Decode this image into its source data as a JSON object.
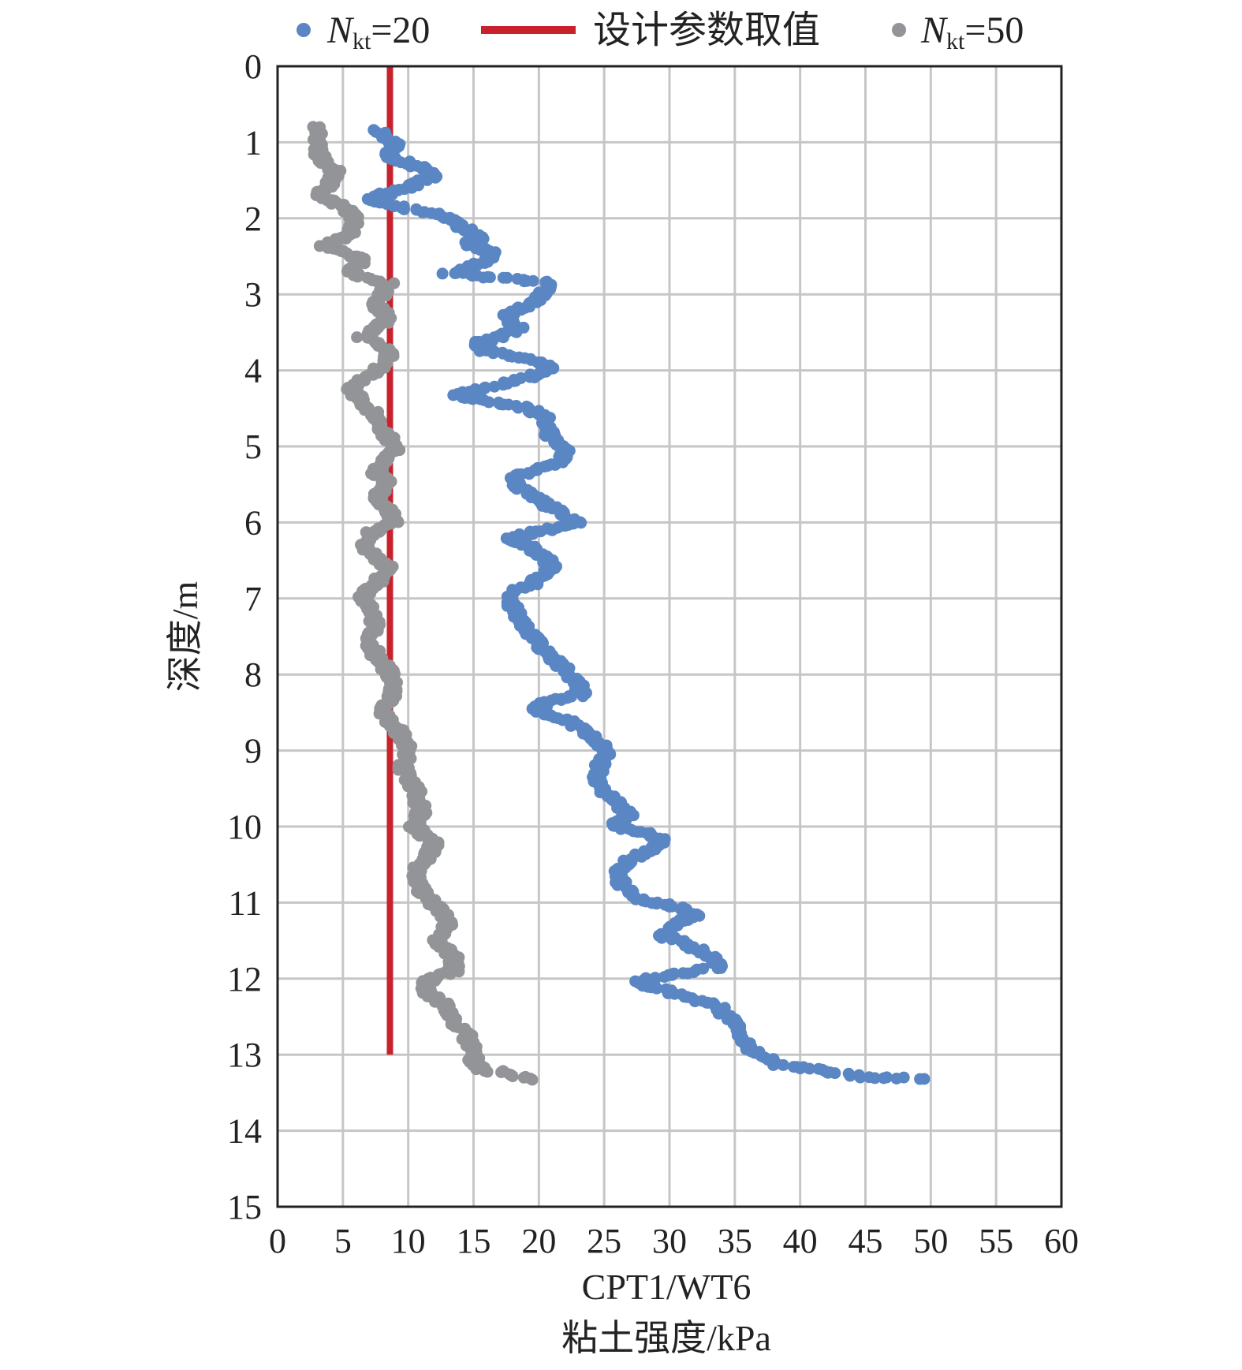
{
  "chart_data": {
    "type": "scatter",
    "title": "",
    "xlabel": "CPT1/WT6",
    "xlabel_line2": "粘土强度/kPa",
    "ylabel": "深度/m",
    "xlim": [
      0,
      60
    ],
    "ylim": [
      15,
      0
    ],
    "x_ticks": [
      0,
      5,
      10,
      15,
      20,
      25,
      30,
      35,
      40,
      45,
      50,
      55,
      60
    ],
    "y_ticks": [
      0,
      1,
      2,
      3,
      4,
      5,
      6,
      7,
      8,
      9,
      10,
      11,
      12,
      13,
      14,
      15
    ],
    "grid": true,
    "legend_position": "top",
    "legend": [
      {
        "key": "nkt20",
        "symbol": "N",
        "subscript": "kt",
        "suffix": "=20",
        "mark": "dot",
        "color": "#5b86c4"
      },
      {
        "key": "design",
        "label": "设计参数取值",
        "mark": "line",
        "color": "#c8232c"
      },
      {
        "key": "nkt50",
        "symbol": "N",
        "subscript": "kt",
        "suffix": "=50",
        "mark": "dot",
        "color": "#929498"
      }
    ],
    "design_line": {
      "name": "设计参数取值",
      "color": "#c8232c",
      "x": 8.6,
      "y_from": 0,
      "y_to": 13.0
    },
    "series": [
      {
        "name": "Nkt=20",
        "color": "#5b86c4",
        "profile": [
          [
            7.8,
            0.85
          ],
          [
            8.3,
            0.95
          ],
          [
            9.0,
            1.05
          ],
          [
            8.2,
            1.15
          ],
          [
            9.5,
            1.25
          ],
          [
            11.0,
            1.35
          ],
          [
            12.0,
            1.45
          ],
          [
            10.5,
            1.55
          ],
          [
            9.0,
            1.65
          ],
          [
            7.0,
            1.75
          ],
          [
            9.5,
            1.85
          ],
          [
            12.5,
            1.95
          ],
          [
            13.5,
            2.05
          ],
          [
            14.5,
            2.15
          ],
          [
            15.5,
            2.25
          ],
          [
            14.5,
            2.35
          ],
          [
            16.5,
            2.45
          ],
          [
            16.0,
            2.55
          ],
          [
            14.5,
            2.65
          ],
          [
            13.0,
            2.72
          ],
          [
            18.0,
            2.8
          ],
          [
            21.0,
            2.85
          ],
          [
            20.5,
            2.95
          ],
          [
            20.0,
            3.05
          ],
          [
            19.0,
            3.15
          ],
          [
            17.5,
            3.3
          ],
          [
            18.5,
            3.45
          ],
          [
            17.0,
            3.55
          ],
          [
            15.0,
            3.65
          ],
          [
            16.0,
            3.75
          ],
          [
            19.0,
            3.85
          ],
          [
            21.0,
            3.95
          ],
          [
            20.0,
            4.05
          ],
          [
            18.0,
            4.15
          ],
          [
            15.5,
            4.25
          ],
          [
            13.5,
            4.33
          ],
          [
            16.0,
            4.4
          ],
          [
            19.0,
            4.5
          ],
          [
            20.5,
            4.6
          ],
          [
            20.5,
            4.75
          ],
          [
            21.0,
            4.9
          ],
          [
            22.0,
            5.05
          ],
          [
            21.5,
            5.2
          ],
          [
            20.0,
            5.3
          ],
          [
            18.0,
            5.4
          ],
          [
            18.5,
            5.55
          ],
          [
            20.0,
            5.7
          ],
          [
            21.5,
            5.85
          ],
          [
            23.0,
            6.0
          ],
          [
            20.5,
            6.1
          ],
          [
            17.5,
            6.2
          ],
          [
            19.0,
            6.3
          ],
          [
            20.5,
            6.45
          ],
          [
            21.0,
            6.6
          ],
          [
            19.5,
            6.8
          ],
          [
            17.5,
            6.95
          ],
          [
            18.0,
            7.1
          ],
          [
            18.5,
            7.3
          ],
          [
            19.5,
            7.5
          ],
          [
            20.5,
            7.7
          ],
          [
            21.5,
            7.85
          ],
          [
            22.5,
            8.0
          ],
          [
            23.0,
            8.15
          ],
          [
            23.5,
            8.25
          ],
          [
            21.0,
            8.35
          ],
          [
            19.5,
            8.45
          ],
          [
            22.0,
            8.6
          ],
          [
            23.5,
            8.75
          ],
          [
            24.5,
            8.9
          ],
          [
            25.5,
            9.05
          ],
          [
            24.5,
            9.2
          ],
          [
            24.5,
            9.4
          ],
          [
            25.0,
            9.55
          ],
          [
            26.0,
            9.7
          ],
          [
            27.0,
            9.85
          ],
          [
            25.5,
            9.98
          ],
          [
            28.5,
            10.1
          ],
          [
            29.5,
            10.2
          ],
          [
            28.0,
            10.35
          ],
          [
            26.5,
            10.5
          ],
          [
            26.0,
            10.65
          ],
          [
            26.5,
            10.8
          ],
          [
            27.5,
            10.95
          ],
          [
            30.5,
            11.05
          ],
          [
            32.0,
            11.15
          ],
          [
            30.5,
            11.3
          ],
          [
            29.5,
            11.45
          ],
          [
            31.5,
            11.55
          ],
          [
            33.0,
            11.7
          ],
          [
            34.0,
            11.85
          ],
          [
            30.0,
            11.95
          ],
          [
            27.5,
            12.05
          ],
          [
            29.5,
            12.15
          ],
          [
            31.5,
            12.25
          ],
          [
            33.5,
            12.35
          ],
          [
            34.5,
            12.5
          ],
          [
            35.5,
            12.65
          ],
          [
            35.5,
            12.8
          ],
          [
            36.5,
            12.95
          ],
          [
            37.5,
            13.05
          ],
          [
            38.0,
            13.12
          ],
          [
            41.0,
            13.2
          ],
          [
            43.0,
            13.25
          ],
          [
            45.0,
            13.3
          ],
          [
            49.5,
            13.32
          ]
        ]
      },
      {
        "name": "Nkt=50",
        "color": "#929498",
        "profile": [
          [
            3.0,
            0.8
          ],
          [
            3.2,
            0.95
          ],
          [
            3.0,
            1.1
          ],
          [
            3.5,
            1.25
          ],
          [
            4.5,
            1.4
          ],
          [
            4.0,
            1.55
          ],
          [
            3.0,
            1.7
          ],
          [
            4.5,
            1.8
          ],
          [
            5.5,
            1.9
          ],
          [
            6.0,
            2.05
          ],
          [
            5.5,
            2.2
          ],
          [
            4.5,
            2.3
          ],
          [
            3.5,
            2.35
          ],
          [
            5.0,
            2.45
          ],
          [
            6.5,
            2.55
          ],
          [
            5.5,
            2.65
          ],
          [
            6.0,
            2.75
          ],
          [
            8.5,
            2.85
          ],
          [
            8.0,
            3.0
          ],
          [
            7.5,
            3.15
          ],
          [
            8.5,
            3.3
          ],
          [
            7.5,
            3.45
          ],
          [
            6.5,
            3.55
          ],
          [
            7.5,
            3.65
          ],
          [
            8.5,
            3.75
          ],
          [
            8.5,
            3.9
          ],
          [
            7.0,
            4.05
          ],
          [
            5.5,
            4.25
          ],
          [
            6.5,
            4.4
          ],
          [
            7.5,
            4.6
          ],
          [
            8.0,
            4.75
          ],
          [
            8.5,
            4.9
          ],
          [
            9.0,
            5.05
          ],
          [
            8.0,
            5.2
          ],
          [
            7.5,
            5.35
          ],
          [
            8.5,
            5.5
          ],
          [
            7.5,
            5.65
          ],
          [
            8.5,
            5.85
          ],
          [
            9.0,
            6.0
          ],
          [
            7.0,
            6.15
          ],
          [
            6.5,
            6.3
          ],
          [
            7.5,
            6.45
          ],
          [
            8.5,
            6.6
          ],
          [
            7.5,
            6.8
          ],
          [
            6.5,
            6.95
          ],
          [
            7.0,
            7.15
          ],
          [
            7.5,
            7.35
          ],
          [
            7.0,
            7.55
          ],
          [
            7.5,
            7.75
          ],
          [
            8.5,
            7.95
          ],
          [
            9.0,
            8.15
          ],
          [
            8.5,
            8.35
          ],
          [
            7.8,
            8.45
          ],
          [
            8.5,
            8.6
          ],
          [
            9.5,
            8.8
          ],
          [
            10.0,
            9.0
          ],
          [
            9.5,
            9.2
          ],
          [
            10.5,
            9.5
          ],
          [
            11.0,
            9.8
          ],
          [
            10.5,
            10.0
          ],
          [
            11.0,
            10.1
          ],
          [
            12.0,
            10.2
          ],
          [
            11.5,
            10.4
          ],
          [
            10.5,
            10.6
          ],
          [
            11.0,
            10.85
          ],
          [
            12.5,
            11.1
          ],
          [
            13.0,
            11.3
          ],
          [
            12.0,
            11.5
          ],
          [
            13.5,
            11.7
          ],
          [
            13.5,
            11.9
          ],
          [
            11.0,
            12.05
          ],
          [
            11.5,
            12.2
          ],
          [
            13.0,
            12.35
          ],
          [
            13.5,
            12.55
          ],
          [
            14.5,
            12.75
          ],
          [
            15.0,
            12.95
          ],
          [
            15.0,
            13.1
          ],
          [
            15.5,
            13.2
          ],
          [
            17.0,
            13.22
          ],
          [
            18.0,
            13.27
          ],
          [
            19.5,
            13.33
          ]
        ]
      }
    ]
  }
}
